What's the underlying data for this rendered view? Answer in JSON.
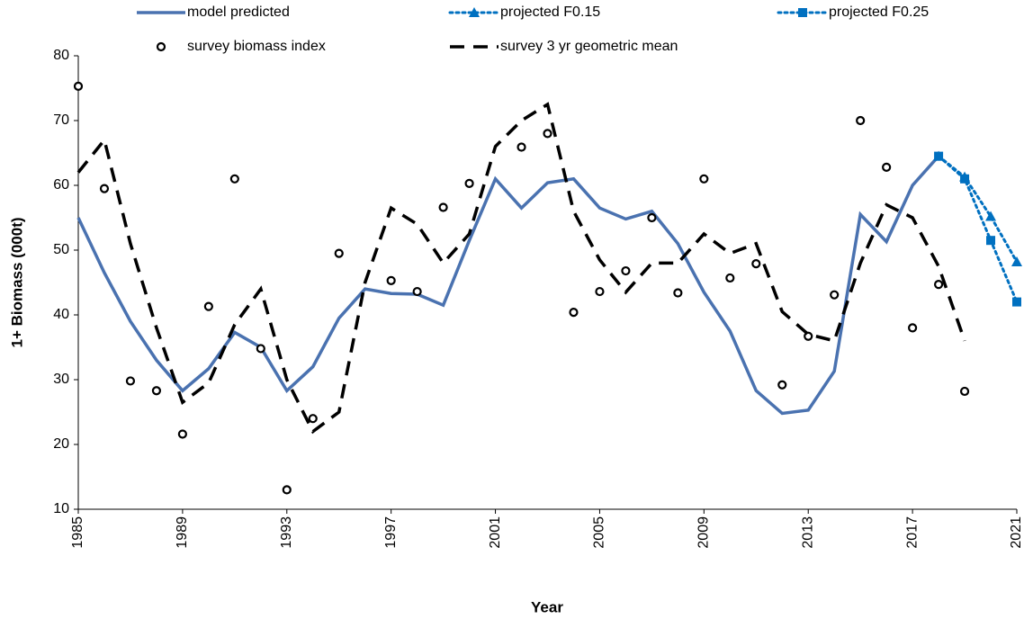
{
  "chart_data": {
    "type": "line",
    "x_label": "Year",
    "y_label": "1+ Biomass (000t)",
    "xlim": [
      1985,
      2021
    ],
    "xticks": [
      1985,
      1989,
      1993,
      1997,
      2001,
      2005,
      2009,
      2013,
      2017,
      2021
    ],
    "ylim": [
      10,
      80
    ],
    "yticks": [
      10,
      20,
      30,
      40,
      50,
      60,
      70,
      80
    ],
    "grid": false,
    "legend": "top",
    "series": [
      {
        "name": "model predicted",
        "color": "#4a72b0",
        "line_style": "solid",
        "marker": "none",
        "x": [
          1985,
          1986,
          1987,
          1988,
          1989,
          1990,
          1991,
          1992,
          1993,
          1994,
          1995,
          1996,
          1997,
          1998,
          1999,
          2000,
          2001,
          2002,
          2003,
          2004,
          2005,
          2006,
          2007,
          2008,
          2009,
          2010,
          2011,
          2012,
          2013,
          2014,
          2015,
          2016,
          2017,
          2018
        ],
        "values": [
          55,
          46.5,
          39,
          33,
          28.3,
          31.7,
          37.3,
          35,
          28.3,
          32,
          39.5,
          44,
          43.3,
          43.2,
          41.5,
          51.5,
          61,
          56.5,
          60.4,
          61,
          56.5,
          54.8,
          56,
          51,
          43.5,
          37.5,
          28.3,
          24.8,
          25.3,
          31.3,
          55.5,
          51.3,
          60,
          64.5
        ]
      },
      {
        "name": "projected F0.15",
        "color": "#0070c0",
        "line_style": "dotted",
        "marker": "triangle",
        "x": [
          2018,
          2019,
          2020,
          2021
        ],
        "values": [
          64.5,
          61.3,
          55.2,
          48.2
        ]
      },
      {
        "name": "projected F0.25",
        "color": "#0070c0",
        "line_style": "dotted",
        "marker": "square",
        "x": [
          2018,
          2019,
          2020,
          2021
        ],
        "values": [
          64.5,
          61,
          51.5,
          42
        ]
      },
      {
        "name": "survey biomass index",
        "color": "#000000",
        "line_style": "none",
        "marker": "circle",
        "x": [
          1985,
          1986,
          1987,
          1988,
          1989,
          1990,
          1991,
          1992,
          1993,
          1994,
          1995,
          1996,
          1997,
          1998,
          1999,
          2000,
          2001,
          2002,
          2003,
          2004,
          2005,
          2006,
          2007,
          2008,
          2009,
          2010,
          2011,
          2012,
          2013,
          2014,
          2015,
          2016,
          2017,
          2018,
          2019
        ],
        "values": [
          75.3,
          59.5,
          29.8,
          28.3,
          21.6,
          41.3,
          61,
          34.8,
          13,
          24,
          49.5,
          null,
          45.3,
          43.6,
          56.6,
          60.3,
          null,
          65.9,
          68,
          40.4,
          43.6,
          46.8,
          55,
          43.4,
          61,
          45.7,
          47.9,
          29.2,
          36.7,
          43.1,
          70,
          62.8,
          38,
          44.7,
          28.2
        ]
      },
      {
        "name": "survey 3 yr geometric mean",
        "color": "#000000",
        "line_style": "dashed",
        "marker": "none",
        "x": [
          1985,
          1986,
          1987,
          1988,
          1989,
          1990,
          1991,
          1992,
          1993,
          1994,
          1995,
          1996,
          1997,
          1998,
          1999,
          2000,
          2001,
          2002,
          2003,
          2004,
          2005,
          2006,
          2007,
          2008,
          2009,
          2010,
          2011,
          2012,
          2013,
          2014,
          2015,
          2016,
          2017,
          2018,
          2019
        ],
        "values": [
          62,
          67,
          51,
          38,
          26.5,
          29.5,
          38.5,
          44,
          30,
          22,
          25,
          45,
          56.5,
          54,
          48,
          52.5,
          66,
          70,
          72.5,
          56,
          48.5,
          43.5,
          48,
          48,
          52.5,
          49.5,
          51,
          40.5,
          37,
          36,
          48,
          57,
          55,
          47.5,
          36
        ]
      }
    ]
  }
}
